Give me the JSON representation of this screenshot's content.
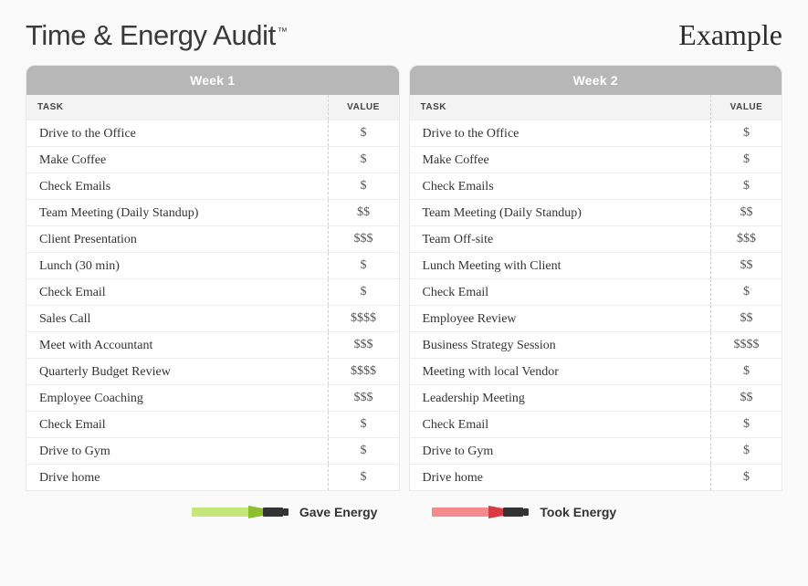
{
  "title": "Time & Energy Audit",
  "tm": "™",
  "example_label": "Example",
  "columns": {
    "task": "TASK",
    "value": "VALUE"
  },
  "colors": {
    "gave": "#c5e67b",
    "took": "#f58a8e",
    "gave_dark": "#8cbf2e",
    "took_dark": "#d93b42"
  },
  "legend": {
    "gave": "Gave Energy",
    "took": "Took Energy"
  },
  "weeks": [
    {
      "title": "Week 1",
      "rows": [
        {
          "task": "Drive to the Office",
          "energy": "took",
          "value": "$"
        },
        {
          "task": "Make Coffee",
          "energy": "gave",
          "value": "$"
        },
        {
          "task": "Check Emails",
          "energy": "took",
          "value": "$"
        },
        {
          "task": "Team Meeting (Daily Standup)",
          "energy": "gave",
          "value": "$$"
        },
        {
          "task": "Client Presentation",
          "energy": "gave",
          "value": "$$$"
        },
        {
          "task": "Lunch (30 min)",
          "energy": "gave",
          "value": "$"
        },
        {
          "task": "Check Email",
          "energy": "took",
          "value": "$"
        },
        {
          "task": "Sales Call",
          "energy": "none",
          "value": "$$$$"
        },
        {
          "task": "Meet with Accountant",
          "energy": "took",
          "value": "$$$"
        },
        {
          "task": "Quarterly Budget Review",
          "energy": "took",
          "value": "$$$$"
        },
        {
          "task": "Employee Coaching",
          "energy": "gave",
          "value": "$$$"
        },
        {
          "task": "Check Email",
          "energy": "took",
          "value": "$"
        },
        {
          "task": "Drive to Gym",
          "energy": "gave",
          "value": "$"
        },
        {
          "task": "Drive home",
          "energy": "gave",
          "value": "$"
        }
      ]
    },
    {
      "title": "Week 2",
      "rows": [
        {
          "task": "Drive to the Office",
          "energy": "took",
          "value": "$"
        },
        {
          "task": "Make Coffee",
          "energy": "gave",
          "value": "$"
        },
        {
          "task": "Check Emails",
          "energy": "took",
          "value": "$"
        },
        {
          "task": "Team Meeting (Daily Standup)",
          "energy": "gave",
          "value": "$$"
        },
        {
          "task": "Team Off-site",
          "energy": "gave",
          "value": "$$$"
        },
        {
          "task": "Lunch Meeting with Client",
          "energy": "gave",
          "value": "$$"
        },
        {
          "task": "Check Email",
          "energy": "took",
          "value": "$"
        },
        {
          "task": "Employee Review",
          "energy": "none",
          "value": "$$"
        },
        {
          "task": "Business Strategy Session",
          "energy": "gave",
          "value": "$$$$"
        },
        {
          "task": "Meeting with local Vendor",
          "energy": "took",
          "value": "$"
        },
        {
          "task": "Leadership Meeting",
          "energy": "gave",
          "value": "$$"
        },
        {
          "task": "Check Email",
          "energy": "took",
          "value": "$"
        },
        {
          "task": "Drive to Gym",
          "energy": "gave",
          "value": "$"
        },
        {
          "task": "Drive home",
          "energy": "gave",
          "value": "$"
        }
      ]
    }
  ]
}
